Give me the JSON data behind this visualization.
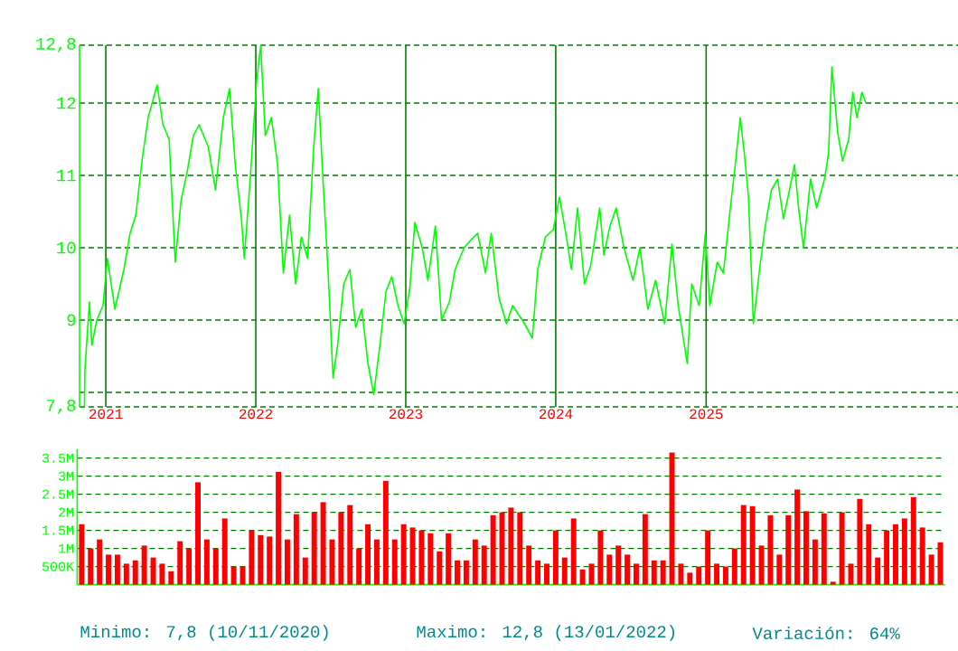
{
  "chart_data": [
    {
      "type": "line",
      "color": "#00ff00",
      "x": [
        "2020-11-10",
        "2020-11-11",
        "2020-11-22",
        "2020-11-28",
        "2020-12-10",
        "2020-12-25",
        "2021-01-05",
        "2021-01-23",
        "2021-02-14",
        "2021-03-01",
        "2021-03-15",
        "2021-03-30",
        "2021-04-14",
        "2021-05-06",
        "2021-05-20",
        "2021-06-04",
        "2021-06-19",
        "2021-07-03",
        "2021-07-18",
        "2021-08-02",
        "2021-08-16",
        "2021-09-07",
        "2021-09-25",
        "2021-10-14",
        "2021-10-29",
        "2021-11-12",
        "2021-11-27",
        "2021-12-04",
        "2021-12-19",
        "2022-01-03",
        "2022-01-13",
        "2022-01-24",
        "2022-02-08",
        "2022-02-23",
        "2022-03-09",
        "2022-03-24",
        "2022-04-08",
        "2022-04-22",
        "2022-05-07",
        "2022-05-22",
        "2022-06-02",
        "2022-06-13",
        "2022-06-27",
        "2022-07-08",
        "2022-07-19",
        "2022-08-03",
        "2022-08-18",
        "2022-09-01",
        "2022-09-16",
        "2022-10-01",
        "2022-10-15",
        "2022-10-30",
        "2022-11-14",
        "2022-11-28",
        "2022-12-13",
        "2022-12-28",
        "2023-01-11",
        "2023-01-23",
        "2023-02-10",
        "2023-02-24",
        "2023-03-14",
        "2023-03-29",
        "2023-04-17",
        "2023-05-01",
        "2023-05-23",
        "2023-06-07",
        "2023-06-25",
        "2023-07-14",
        "2023-07-28",
        "2023-08-16",
        "2023-09-03",
        "2023-09-18",
        "2023-10-17",
        "2023-11-05",
        "2023-11-18",
        "2023-12-07",
        "2023-12-26",
        "2024-01-10",
        "2024-01-27",
        "2024-02-08",
        "2024-02-23",
        "2024-03-11",
        "2024-03-26",
        "2024-04-17",
        "2024-04-27",
        "2024-05-12",
        "2024-05-27",
        "2024-06-15",
        "2024-07-07",
        "2024-07-24",
        "2024-08-12",
        "2024-08-31",
        "2024-09-22",
        "2024-10-10",
        "2024-10-25",
        "2024-11-16",
        "2024-11-27",
        "2024-12-15",
        "2024-12-30",
        "2025-01-10",
        "2025-01-28",
        "2025-02-12",
        "2025-03-01",
        "2025-03-13",
        "2025-03-25",
        "2025-04-04",
        "2025-04-14",
        "2025-04-26",
        "2025-05-11",
        "2025-05-25",
        "2025-06-09",
        "2025-06-24",
        "2025-07-08",
        "2025-07-23",
        "2025-08-04",
        "2025-08-14",
        "2025-08-26",
        "2025-09-12",
        "2025-09-27",
        "2025-10-16",
        "2025-10-26",
        "2025-11-03",
        "2025-11-17",
        "2025-11-29",
        "2025-12-14",
        "2025-12-24",
        "2026-01-03",
        "2026-01-15",
        "2026-01-25"
      ],
      "values": [
        7.8,
        8.3,
        9.25,
        8.65,
        9.0,
        9.2,
        9.85,
        9.15,
        9.7,
        10.2,
        10.45,
        11.2,
        11.8,
        12.25,
        11.7,
        11.5,
        9.8,
        10.65,
        11.05,
        11.55,
        11.7,
        11.4,
        10.8,
        11.8,
        12.2,
        11.15,
        10.4,
        9.85,
        11.0,
        12.3,
        12.8,
        11.55,
        11.8,
        11.15,
        9.65,
        10.45,
        9.5,
        10.15,
        9.85,
        11.4,
        12.2,
        11.0,
        9.55,
        8.2,
        8.65,
        9.5,
        9.7,
        8.9,
        9.15,
        8.4,
        7.97,
        8.65,
        9.4,
        9.6,
        9.2,
        8.95,
        9.45,
        10.35,
        10.0,
        9.55,
        10.3,
        9.0,
        9.25,
        9.7,
        10.0,
        10.1,
        10.2,
        9.65,
        10.2,
        9.3,
        8.95,
        9.2,
        8.95,
        8.75,
        9.7,
        10.15,
        10.25,
        10.7,
        10.15,
        9.7,
        10.55,
        9.5,
        9.75,
        10.55,
        9.9,
        10.3,
        10.55,
        10.0,
        9.55,
        10.0,
        9.15,
        9.55,
        8.95,
        10.05,
        9.2,
        8.4,
        9.5,
        9.2,
        10.2,
        9.2,
        9.8,
        9.65,
        10.55,
        11.15,
        11.8,
        11.3,
        10.7,
        8.95,
        9.7,
        10.3,
        10.8,
        10.95,
        10.4,
        10.8,
        11.15,
        10.55,
        10.0,
        10.95,
        10.55,
        10.95,
        11.3,
        12.5,
        11.6,
        11.2,
        11.5,
        12.15,
        11.8,
        12.15,
        12.0
      ],
      "xlim": [
        "2020-10-29",
        "2026-09-06"
      ],
      "ylim": [
        7.8,
        12.8
      ],
      "xticks": [
        "2021",
        "2022",
        "2023",
        "2024",
        "2025"
      ],
      "yticks": [
        {
          "value": 7.8,
          "label": "7,8"
        },
        {
          "value": 8,
          "label": null
        },
        9,
        10,
        11,
        12,
        {
          "value": 12.8,
          "label": "12,8"
        }
      ],
      "grid": true
    },
    {
      "type": "bar",
      "color": "#ff0000",
      "categories": [
        null,
        null,
        null,
        null,
        null,
        null,
        null,
        null,
        null,
        null,
        null,
        null,
        null,
        null,
        null,
        null,
        null,
        null,
        null,
        null,
        null,
        null,
        null,
        null,
        null,
        null,
        null,
        null,
        null,
        null,
        null,
        null,
        null,
        null,
        null,
        null,
        null,
        null,
        null,
        null,
        null,
        null,
        null,
        null,
        null,
        null,
        null,
        null,
        null,
        null,
        null,
        null,
        null,
        null,
        null,
        null,
        null,
        null,
        null,
        null,
        null,
        null,
        null,
        null,
        null,
        null,
        null,
        null,
        null,
        null,
        null,
        null,
        null,
        null,
        null,
        null,
        null,
        null,
        null,
        null,
        null,
        null,
        null,
        null,
        null,
        null,
        null,
        null,
        null,
        null,
        null,
        null,
        null,
        null,
        null,
        null,
        null
      ],
      "values": [
        1670000,
        1000000,
        1250000,
        830000,
        830000,
        580000,
        670000,
        1080000,
        750000,
        580000,
        370000,
        1200000,
        1000000,
        2830000,
        1250000,
        1000000,
        1830000,
        500000,
        500000,
        1500000,
        1370000,
        1330000,
        3120000,
        1250000,
        1950000,
        750000,
        2000000,
        2280000,
        1250000,
        2000000,
        2200000,
        1000000,
        1670000,
        1250000,
        2870000,
        1250000,
        1670000,
        1580000,
        1500000,
        1420000,
        920000,
        1420000,
        670000,
        670000,
        1250000,
        1080000,
        1920000,
        2000000,
        2130000,
        2000000,
        1080000,
        670000,
        580000,
        1500000,
        750000,
        1830000,
        420000,
        580000,
        1500000,
        830000,
        1080000,
        830000,
        580000,
        1950000,
        670000,
        670000,
        3650000,
        580000,
        330000,
        500000,
        1500000,
        580000,
        500000,
        1000000,
        2200000,
        2170000,
        1080000,
        1920000,
        830000,
        1920000,
        2630000,
        2030000,
        1250000,
        1970000,
        80000,
        2000000,
        580000,
        2370000,
        1670000,
        750000,
        1500000,
        1670000,
        1830000,
        2420000,
        1580000,
        830000,
        1170000
      ],
      "ylim": [
        0,
        3750000
      ],
      "yticks": [
        {
          "value": 500000,
          "label": "500K"
        },
        {
          "value": 1000000,
          "label": "1M"
        },
        {
          "value": 1500000,
          "label": "1.5M"
        },
        {
          "value": 2000000,
          "label": "2M"
        },
        {
          "value": 2500000,
          "label": "2.5M"
        },
        {
          "value": 3000000,
          "label": "3M"
        },
        {
          "value": 3500000,
          "label": "3.5M"
        }
      ],
      "grid": "y",
      "tick_labels": "y",
      "annotations": [
        "Minimo: 7,8 (10/11/2020)",
        "Maximo: 12,8 (13/01/2022)",
        "Variación: 64%"
      ]
    }
  ]
}
